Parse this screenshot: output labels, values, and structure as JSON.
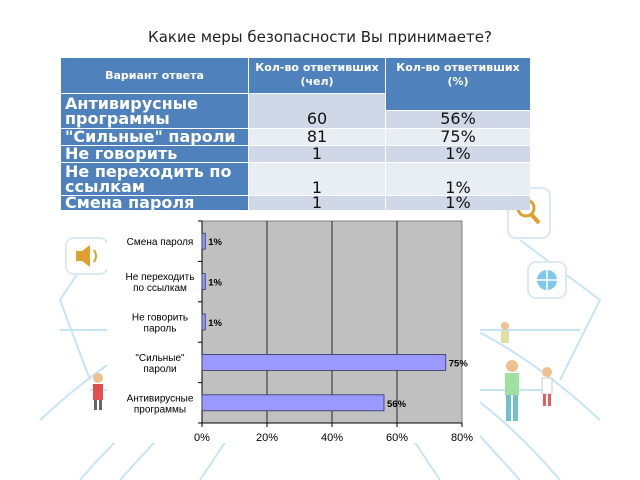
{
  "title": "Какие меры безопасности Вы принимаете?",
  "table": {
    "headers": [
      "Вариант ответа",
      "Кол-во ответивших (чел)",
      "Кол-во ответивших  (%)"
    ],
    "rows": [
      {
        "label": "Антивирусные программы",
        "count": "60",
        "percent": "56%"
      },
      {
        "label": "\"Сильные\" пароли",
        "count": "81",
        "percent": "75%"
      },
      {
        "label": "Не говорить пароль",
        "count": "1",
        "percent": "1%"
      },
      {
        "label": "Не переходить по ссылкам",
        "count": "1",
        "percent": "1%"
      },
      {
        "label": "Смена пароля",
        "count": "1",
        "percent": "1%"
      }
    ]
  },
  "chart_data": {
    "type": "bar",
    "orientation": "horizontal",
    "categories": [
      "Смена пароля",
      "Не переходить по ссылкам",
      "Не говорить пароль",
      "\"Сильные\" пароли",
      "Антивирусные программы"
    ],
    "category_lines": [
      [
        "Смена пароля"
      ],
      [
        "Не переходить",
        "по ссылкам"
      ],
      [
        "Не говорить",
        "пароль"
      ],
      [
        "\"Сильные\"",
        "пароли"
      ],
      [
        "Антивирусные",
        "программы"
      ]
    ],
    "values": [
      1,
      1,
      1,
      75,
      56
    ],
    "data_labels": [
      "1%",
      "1%",
      "1%",
      "75%",
      "56%"
    ],
    "xlim": [
      0,
      80
    ],
    "x_ticks": [
      "0%",
      "20%",
      "40%",
      "60%",
      "80%"
    ],
    "grid": true,
    "colors": {
      "bar": "#9999ff",
      "bar_edge": "#333366",
      "plot_bg": "#c0c0c0"
    }
  }
}
